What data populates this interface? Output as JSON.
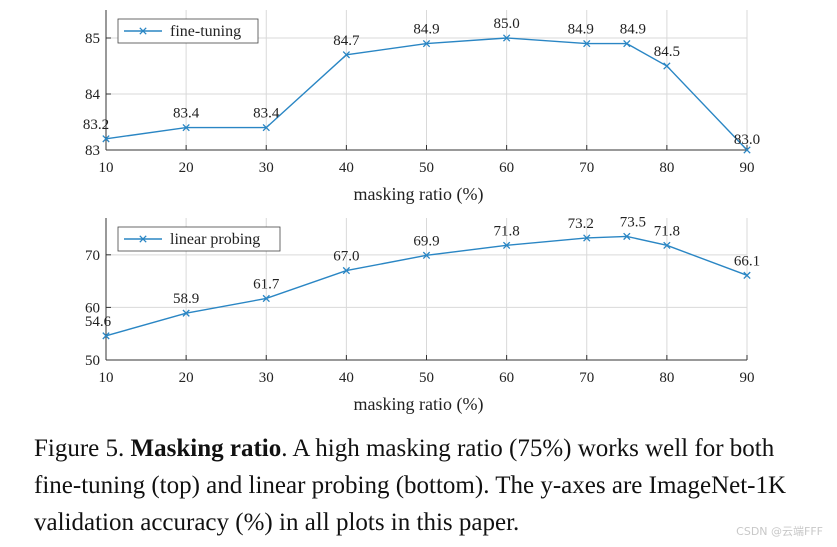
{
  "chart_data": [
    {
      "type": "line",
      "x": [
        10,
        20,
        30,
        40,
        50,
        60,
        70,
        75,
        80,
        90
      ],
      "series": [
        {
          "name": "fine-tuning",
          "values": [
            83.2,
            83.4,
            83.4,
            84.7,
            84.9,
            85.0,
            84.9,
            84.9,
            84.5,
            83.0
          ],
          "color": "#2a86c4"
        }
      ],
      "data_labels": [
        "83.2",
        "83.4",
        "83.4",
        "84.7",
        "84.9",
        "85.0",
        "84.9",
        "84.9",
        "84.5",
        "83.0"
      ],
      "xlabel": "masking ratio (%)",
      "ylabel": "",
      "xlim": [
        10,
        90
      ],
      "ylim": [
        83,
        85.5
      ],
      "xticks": [
        10,
        20,
        30,
        40,
        50,
        60,
        70,
        80,
        90
      ],
      "yticks": [
        83,
        84,
        85
      ],
      "grid": true,
      "legend": "top-left",
      "marker": "x"
    },
    {
      "type": "line",
      "x": [
        10,
        20,
        30,
        40,
        50,
        60,
        70,
        75,
        80,
        90
      ],
      "series": [
        {
          "name": "linear probing",
          "values": [
            54.6,
            58.9,
            61.7,
            67.0,
            69.9,
            71.8,
            73.2,
            73.5,
            71.8,
            66.1
          ],
          "color": "#2a86c4"
        }
      ],
      "data_labels": [
        "54.6",
        "58.9",
        "61.7",
        "67.0",
        "69.9",
        "71.8",
        "73.2",
        "73.5",
        "71.8",
        "66.1"
      ],
      "xlabel": "masking ratio (%)",
      "ylabel": "",
      "xlim": [
        10,
        90
      ],
      "ylim": [
        50,
        77
      ],
      "xticks": [
        10,
        20,
        30,
        40,
        50,
        60,
        70,
        80,
        90
      ],
      "yticks": [
        50,
        60,
        70
      ],
      "grid": true,
      "legend": "top-left",
      "marker": "x"
    }
  ],
  "caption": {
    "prefix": "Figure 5. ",
    "bold": "Masking ratio",
    "rest": ". A high masking ratio (75%) works well for both fine-tuning (top) and linear probing (bottom). The y-axes are ImageNet-1K validation accuracy (%) in all plots in this paper."
  },
  "watermark": "CSDN @云端FFF"
}
